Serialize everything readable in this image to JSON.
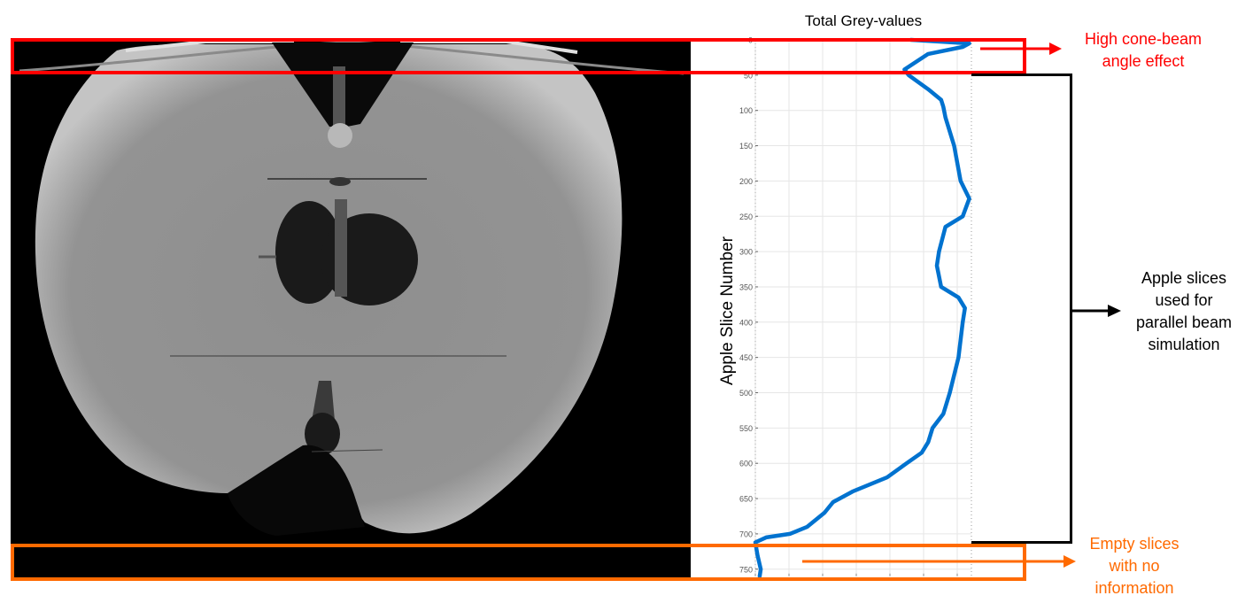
{
  "figure": {
    "left_panel": {
      "label": "Apple CT projection image (grayscale)",
      "background_color": "#000000"
    },
    "annotations": {
      "top": {
        "lines": [
          "High cone-beam",
          "angle effect"
        ],
        "color": "#ff0000"
      },
      "middle": {
        "lines": [
          "Apple slices",
          "used for",
          "parallel beam",
          "simulation"
        ],
        "color": "#000000"
      },
      "bottom": {
        "lines": [
          "Empty slices",
          "with no",
          "information"
        ],
        "color": "#ff6a00"
      }
    },
    "highlight_colors": {
      "top_box": "#ff0000",
      "bottom_box": "#ff6a00",
      "bracket": "#000000",
      "curve": "#0072cf"
    }
  },
  "chart_data": {
    "type": "line",
    "title": "Total Grey-values",
    "xlabel": "",
    "ylabel": "Apple Slice Number",
    "orientation": "vertical (y = slice number increasing downward, x = total grey value)",
    "yticks": [
      0,
      50,
      100,
      150,
      200,
      250,
      300,
      350,
      400,
      450,
      500,
      550,
      600,
      650,
      700,
      750
    ],
    "ylim": [
      0,
      760
    ],
    "x_tick_labels_visible": false,
    "x_normalized_range": [
      0,
      1
    ],
    "grid": true,
    "series": [
      {
        "name": "Total Grey-values",
        "color": "#0072cf",
        "points": [
          {
            "slice": 0,
            "x": 0.72
          },
          {
            "slice": 5,
            "x": 0.99
          },
          {
            "slice": 10,
            "x": 0.96
          },
          {
            "slice": 20,
            "x": 0.8
          },
          {
            "slice": 30,
            "x": 0.75
          },
          {
            "slice": 42,
            "x": 0.69
          },
          {
            "slice": 50,
            "x": 0.71
          },
          {
            "slice": 70,
            "x": 0.8
          },
          {
            "slice": 85,
            "x": 0.86
          },
          {
            "slice": 95,
            "x": 0.87
          },
          {
            "slice": 110,
            "x": 0.88
          },
          {
            "slice": 150,
            "x": 0.92
          },
          {
            "slice": 200,
            "x": 0.95
          },
          {
            "slice": 225,
            "x": 0.99
          },
          {
            "slice": 250,
            "x": 0.96
          },
          {
            "slice": 265,
            "x": 0.88
          },
          {
            "slice": 300,
            "x": 0.85
          },
          {
            "slice": 320,
            "x": 0.84
          },
          {
            "slice": 350,
            "x": 0.86
          },
          {
            "slice": 365,
            "x": 0.94
          },
          {
            "slice": 380,
            "x": 0.97
          },
          {
            "slice": 400,
            "x": 0.96
          },
          {
            "slice": 450,
            "x": 0.94
          },
          {
            "slice": 500,
            "x": 0.9
          },
          {
            "slice": 530,
            "x": 0.87
          },
          {
            "slice": 550,
            "x": 0.82
          },
          {
            "slice": 570,
            "x": 0.8
          },
          {
            "slice": 585,
            "x": 0.77
          },
          {
            "slice": 600,
            "x": 0.7
          },
          {
            "slice": 620,
            "x": 0.61
          },
          {
            "slice": 640,
            "x": 0.45
          },
          {
            "slice": 655,
            "x": 0.36
          },
          {
            "slice": 670,
            "x": 0.32
          },
          {
            "slice": 690,
            "x": 0.24
          },
          {
            "slice": 700,
            "x": 0.16
          },
          {
            "slice": 705,
            "x": 0.05
          },
          {
            "slice": 712,
            "x": 0.0
          },
          {
            "slice": 730,
            "x": 0.01
          },
          {
            "slice": 750,
            "x": 0.025
          },
          {
            "slice": 760,
            "x": 0.02
          }
        ]
      }
    ],
    "regions": [
      {
        "name": "High cone-beam angle effect",
        "slice_range": [
          0,
          50
        ],
        "color": "#ff0000"
      },
      {
        "name": "Apple slices used for parallel beam simulation",
        "slice_range": [
          50,
          715
        ],
        "color": "#000000"
      },
      {
        "name": "Empty slices with no information",
        "slice_range": [
          715,
          760
        ],
        "color": "#ff6a00"
      }
    ]
  }
}
